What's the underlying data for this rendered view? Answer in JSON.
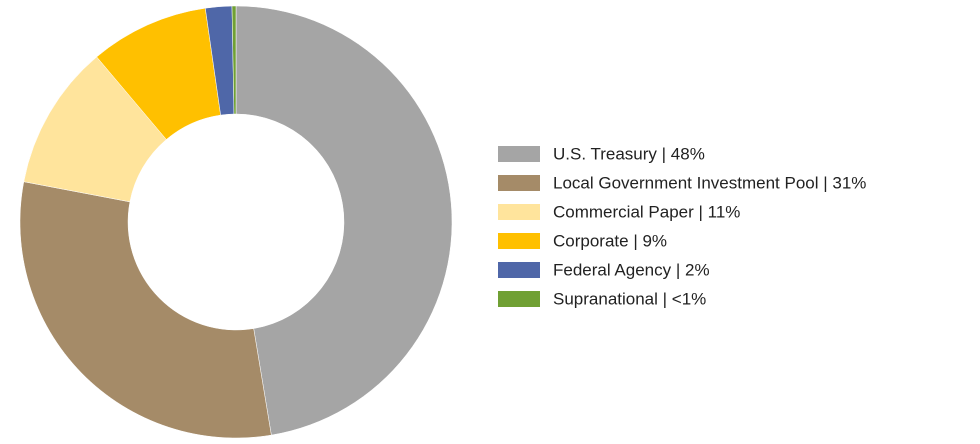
{
  "chart_data": {
    "type": "donut",
    "categories": [
      "U.S. Treasury | 48%",
      "Local Government Investment Pool | 31%",
      "Commercial Paper | 11%",
      "Corporate | 9%",
      "Federal Agency | 2%",
      "Supranational | <1%"
    ],
    "values": [
      48,
      31,
      11,
      9,
      2,
      0.3
    ],
    "colors": [
      "#a5a5a5",
      "#a58b68",
      "#ffe49c",
      "#ffc000",
      "#4f67a8",
      "#70a034"
    ],
    "legend": "right"
  }
}
